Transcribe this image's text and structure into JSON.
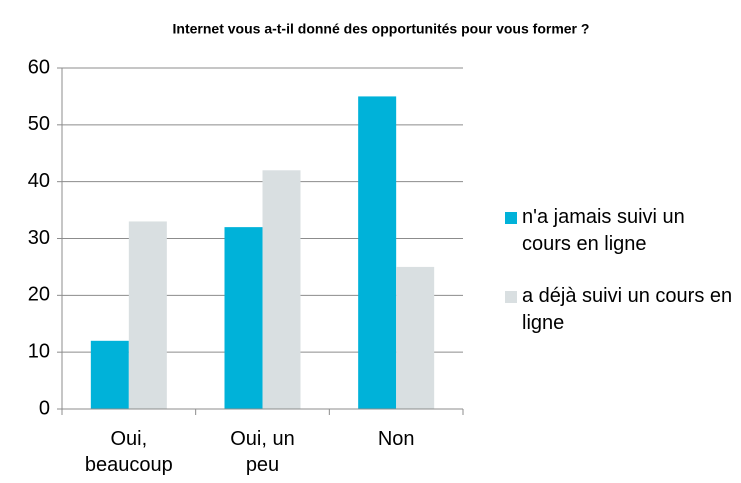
{
  "chart_data": {
    "type": "bar",
    "title": "Internet vous a-t-il donné des opportunités pour vous former ?",
    "categories": [
      "Oui, beaucoup",
      "Oui, un peu",
      "Non"
    ],
    "series": [
      {
        "name": "n'a jamais suivi un cours en ligne",
        "color": "#00b2d9",
        "values": [
          12,
          32,
          55
        ]
      },
      {
        "name": "a déjà suivi un cours en ligne",
        "color": "#d9dfe1",
        "values": [
          33,
          42,
          25
        ]
      }
    ],
    "ylim": [
      0,
      60
    ],
    "yticks": [
      0,
      10,
      20,
      30,
      40,
      50,
      60
    ],
    "grid": true,
    "legend": "right"
  }
}
